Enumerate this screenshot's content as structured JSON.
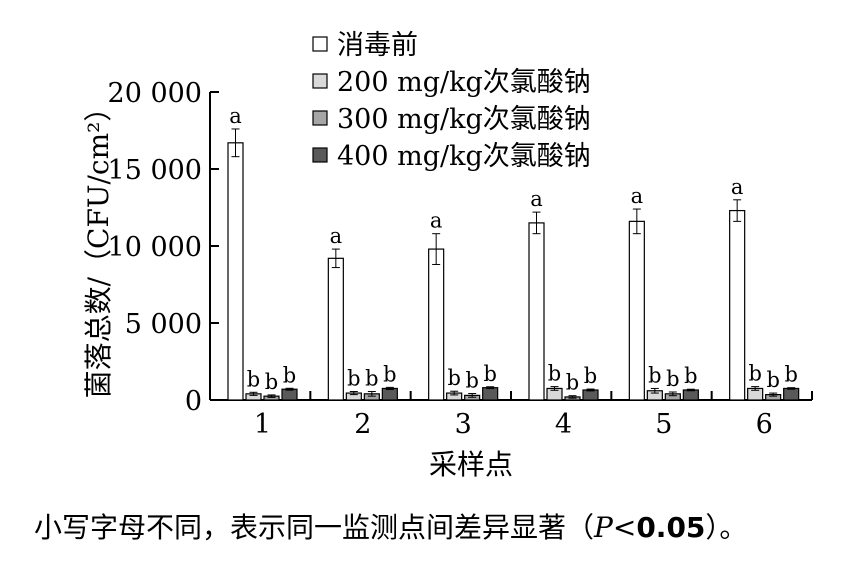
{
  "chart_data": {
    "type": "bar",
    "categories": [
      "1",
      "2",
      "3",
      "4",
      "5",
      "6"
    ],
    "xlabel": "采样点",
    "ylabel": "菌落总数/（CFU/cm²）",
    "ylim": [
      0,
      20000
    ],
    "yticks": [
      {
        "value": 0,
        "label": "0"
      },
      {
        "value": 5000,
        "label": "5 000"
      },
      {
        "value": 10000,
        "label": "10 000"
      },
      {
        "value": 15000,
        "label": "15 000"
      },
      {
        "value": 20000,
        "label": "20 000"
      }
    ],
    "grid": false,
    "legend_position": "top-center",
    "series": [
      {
        "name": "消毒前",
        "color": "#ffffff",
        "values": [
          16700,
          9200,
          9800,
          11500,
          11600,
          12300
        ],
        "errors": [
          900,
          600,
          1000,
          700,
          800,
          700
        ],
        "labels": [
          "a",
          "a",
          "a",
          "a",
          "a",
          "a"
        ]
      },
      {
        "name": "200 mg/kg次氯酸钠",
        "color": "#d9d9d9",
        "values": [
          400,
          450,
          450,
          750,
          600,
          750
        ],
        "errors": [
          100,
          100,
          120,
          120,
          150,
          120
        ],
        "labels": [
          "b",
          "b",
          "b",
          "b",
          "b",
          "b"
        ]
      },
      {
        "name": "300 mg/kg次氯酸钠",
        "color": "#a6a6a6",
        "values": [
          250,
          400,
          300,
          200,
          400,
          350
        ],
        "errors": [
          80,
          150,
          120,
          80,
          120,
          100
        ],
        "labels": [
          "b",
          "b",
          "b",
          "b",
          "b",
          "b"
        ]
      },
      {
        "name": "400 mg/kg次氯酸钠",
        "color": "#595959",
        "values": [
          700,
          750,
          800,
          650,
          650,
          750
        ],
        "errors": [
          60,
          70,
          60,
          60,
          50,
          50
        ],
        "labels": [
          "b",
          "b",
          "b",
          "b",
          "b",
          "b"
        ]
      }
    ]
  },
  "footnote": {
    "prefix": "小写字母不同，表示同一监测点间差异显著（",
    "p_symbol": "P",
    "operator": "<",
    "value": "0.05",
    "suffix": "）。"
  }
}
